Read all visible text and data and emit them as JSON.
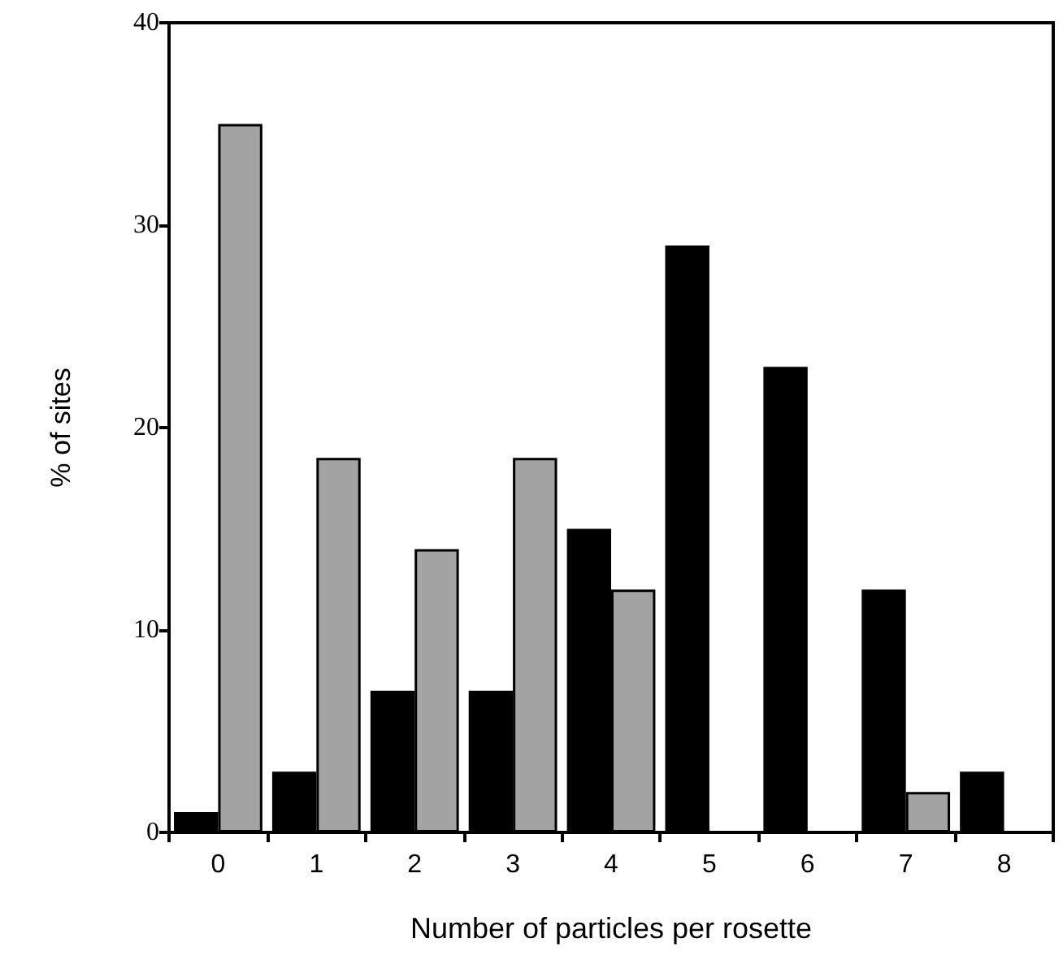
{
  "chart_data": {
    "type": "bar",
    "xlabel": "Number of particles per rosette",
    "ylabel": "% of sites",
    "categories": [
      "0",
      "1",
      "2",
      "3",
      "4",
      "5",
      "6",
      "7",
      "8"
    ],
    "series": [
      {
        "color": "#000000",
        "values": [
          1,
          3,
          7,
          7,
          15,
          29,
          23,
          12,
          3
        ]
      },
      {
        "color": "#a3a3a3",
        "values": [
          35,
          18.5,
          14,
          18.5,
          12,
          0,
          0,
          2,
          0
        ]
      }
    ],
    "ylim": [
      0,
      40
    ],
    "yticks": [
      0,
      10,
      20,
      30,
      40
    ],
    "grid": false
  }
}
